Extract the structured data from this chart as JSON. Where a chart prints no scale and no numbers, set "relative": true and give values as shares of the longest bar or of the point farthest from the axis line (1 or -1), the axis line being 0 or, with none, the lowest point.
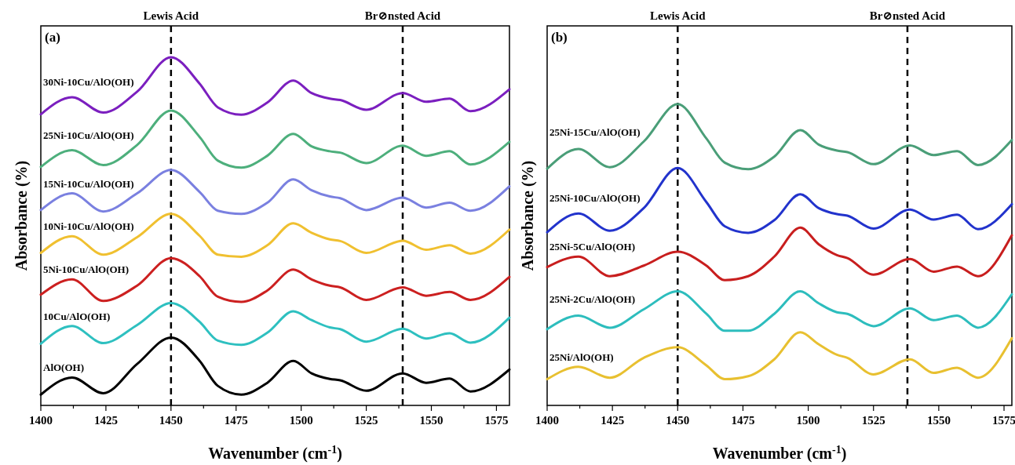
{
  "chart_data": [
    {
      "type": "line",
      "title": "(a)",
      "xlabel": "Wavenumber (cm$^{-1}$)",
      "ylabel": "Absorbance (%)",
      "relative": true,
      "tick_labels": "x",
      "grid": false,
      "line_style": "solid",
      "marker": "none",
      "xlim": [
        1400,
        1580
      ],
      "xticks": [
        1400,
        {
          "value": 1412.5,
          "label": null
        },
        1425,
        {
          "value": 1437.5,
          "label": null
        },
        1450,
        {
          "value": 1462.5,
          "label": null
        },
        1475,
        {
          "value": 1487.5,
          "label": null
        },
        1500,
        {
          "value": 1512.5,
          "label": null
        },
        1525,
        {
          "value": 1537.5,
          "label": null
        },
        1550,
        {
          "value": 1562.5,
          "label": null
        },
        1575
      ],
      "ref_lines": [
        {
          "axis": "x",
          "value": 1450,
          "label": "Lewis Acid",
          "line_style": "dashed",
          "color": "#000000"
        },
        {
          "axis": "x",
          "value": 1539,
          "label": "Br⊘nsted Acid",
          "line_style": "dashed",
          "color": "#000000"
        }
      ],
      "x": [
        1400,
        1412,
        1424,
        1437,
        1450,
        1461,
        1468,
        1477,
        1487,
        1497,
        1504,
        1511,
        1515,
        1525,
        1539,
        1548,
        1557,
        1565,
        1580
      ],
      "series": [
        {
          "name": "30Ni-10Cu/AlO(OH)",
          "color": "#7b1fbf",
          "values": [
            0.836,
            0.885,
            0.841,
            0.901,
            1.0,
            0.924,
            0.856,
            0.835,
            0.87,
            0.933,
            0.897,
            0.881,
            0.877,
            0.849,
            0.897,
            0.872,
            0.881,
            0.845,
            0.908
          ]
        },
        {
          "name": "25Ni-10Cu/AlO(OH)",
          "color": "#4daf7c",
          "values": [
            0.685,
            0.733,
            0.69,
            0.748,
            0.847,
            0.771,
            0.703,
            0.683,
            0.717,
            0.78,
            0.744,
            0.73,
            0.726,
            0.696,
            0.746,
            0.717,
            0.73,
            0.692,
            0.757
          ]
        },
        {
          "name": "15Ni-10Cu/AlO(OH)",
          "color": "#7a80e0",
          "values": [
            0.561,
            0.609,
            0.557,
            0.609,
            0.676,
            0.613,
            0.559,
            0.55,
            0.582,
            0.649,
            0.618,
            0.6,
            0.595,
            0.561,
            0.597,
            0.568,
            0.582,
            0.559,
            0.629
          ]
        },
        {
          "name": "10Ni-10Cu/AlO(OH)",
          "color": "#f0c030",
          "values": [
            0.438,
            0.486,
            0.433,
            0.483,
            0.55,
            0.487,
            0.433,
            0.427,
            0.46,
            0.523,
            0.496,
            0.477,
            0.472,
            0.438,
            0.473,
            0.447,
            0.46,
            0.436,
            0.505
          ]
        },
        {
          "name": "5Ni-10Cu/AlO(OH)",
          "color": "#cc2020",
          "values": [
            0.318,
            0.362,
            0.3,
            0.344,
            0.423,
            0.371,
            0.312,
            0.297,
            0.33,
            0.39,
            0.362,
            0.344,
            0.339,
            0.303,
            0.339,
            0.315,
            0.326,
            0.303,
            0.369
          ]
        },
        {
          "name": "10Cu/AlO(OH)",
          "color": "#2ec0c0",
          "values": [
            0.177,
            0.228,
            0.179,
            0.231,
            0.294,
            0.24,
            0.186,
            0.174,
            0.209,
            0.27,
            0.245,
            0.224,
            0.219,
            0.183,
            0.22,
            0.192,
            0.207,
            0.18,
            0.252
          ]
        },
        {
          "name": "AlO(OH)",
          "color": "#000000",
          "values": [
            0.031,
            0.08,
            0.035,
            0.119,
            0.195,
            0.128,
            0.056,
            0.031,
            0.065,
            0.128,
            0.092,
            0.076,
            0.072,
            0.042,
            0.092,
            0.065,
            0.077,
            0.04,
            0.103
          ]
        }
      ]
    },
    {
      "type": "line",
      "title": "(b)",
      "xlabel": "Wavenumber (cm$^{-1}$)",
      "ylabel": "Absorbance (%)",
      "relative": true,
      "tick_labels": "x",
      "grid": false,
      "line_style": "solid",
      "marker": "none",
      "xlim": [
        1400,
        1578
      ],
      "xticks": [
        1400,
        {
          "value": 1412.5,
          "label": null
        },
        1425,
        {
          "value": 1437.5,
          "label": null
        },
        1450,
        {
          "value": 1462.5,
          "label": null
        },
        1475,
        {
          "value": 1487.5,
          "label": null
        },
        1500,
        {
          "value": 1512.5,
          "label": null
        },
        1525,
        {
          "value": 1537.5,
          "label": null
        },
        1550,
        {
          "value": 1562.5,
          "label": null
        },
        1575
      ],
      "ref_lines": [
        {
          "axis": "x",
          "value": 1450,
          "label": "Lewis Acid",
          "line_style": "dashed",
          "color": "#000000"
        },
        {
          "axis": "x",
          "value": 1538,
          "label": "Br⊘nsted Acid",
          "line_style": "dashed",
          "color": "#000000"
        }
      ],
      "x": [
        1400,
        1412,
        1424,
        1437,
        1450,
        1461,
        1468,
        1477,
        1487,
        1497,
        1504,
        1511,
        1515,
        1525,
        1539,
        1548,
        1557,
        1565,
        1578
      ],
      "series": [
        {
          "name": "25Ni-15Cu/AlO(OH)",
          "color": "#4a9e78",
          "values": [
            0.786,
            0.851,
            0.791,
            0.876,
            1.0,
            0.886,
            0.806,
            0.784,
            0.826,
            0.914,
            0.866,
            0.846,
            0.841,
            0.801,
            0.863,
            0.831,
            0.844,
            0.798,
            0.881
          ]
        },
        {
          "name": "25Ni-10Cu/AlO(OH)",
          "color": "#2233cc",
          "values": [
            0.575,
            0.637,
            0.58,
            0.655,
            0.788,
            0.675,
            0.595,
            0.573,
            0.615,
            0.701,
            0.655,
            0.635,
            0.63,
            0.587,
            0.65,
            0.617,
            0.633,
            0.585,
            0.668
          ]
        },
        {
          "name": "25Ni-5Cu/AlO(OH)",
          "color": "#c81e1e",
          "values": [
            0.459,
            0.494,
            0.429,
            0.464,
            0.51,
            0.464,
            0.416,
            0.429,
            0.494,
            0.59,
            0.535,
            0.499,
            0.489,
            0.434,
            0.486,
            0.444,
            0.461,
            0.429,
            0.565
          ]
        },
        {
          "name": "25Ni-2Cu/AlO(OH)",
          "color": "#2dbdbd",
          "values": [
            0.253,
            0.298,
            0.258,
            0.319,
            0.379,
            0.304,
            0.248,
            0.248,
            0.304,
            0.379,
            0.339,
            0.309,
            0.304,
            0.263,
            0.322,
            0.283,
            0.298,
            0.258,
            0.369
          ]
        },
        {
          "name": "25Ni/AlO(OH)",
          "color": "#e8c030",
          "values": [
            0.087,
            0.128,
            0.092,
            0.158,
            0.193,
            0.133,
            0.087,
            0.097,
            0.153,
            0.243,
            0.203,
            0.168,
            0.158,
            0.103,
            0.153,
            0.108,
            0.125,
            0.092,
            0.223
          ]
        }
      ]
    }
  ]
}
